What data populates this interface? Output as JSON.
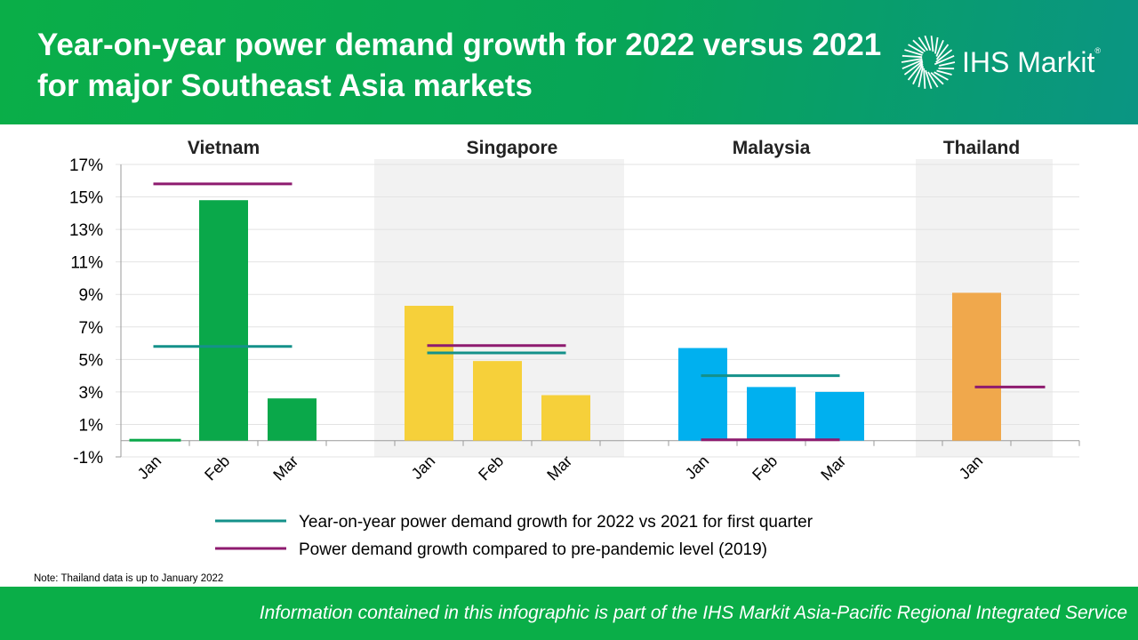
{
  "header": {
    "title": "Year-on-year power demand growth for 2022 versus 2021 for major Southeast Asia markets",
    "logo": "IHS Markit"
  },
  "chart_data": {
    "type": "bar",
    "ylim": [
      -1,
      17
    ],
    "yticks": [
      "-1%",
      "1%",
      "3%",
      "5%",
      "7%",
      "9%",
      "11%",
      "13%",
      "15%",
      "17%"
    ],
    "grid": true,
    "legend_placement": "bottom",
    "groups": [
      {
        "name": "Vietnam",
        "categories": [
          "Jan",
          "Feb",
          "Mar"
        ],
        "values": [
          0.0,
          14.8,
          2.6
        ],
        "color": "#0aa84a",
        "yoy_q1": 5.8,
        "vs_2019": 15.8,
        "shaded": false
      },
      {
        "name": "Singapore",
        "categories": [
          "Jan",
          "Feb",
          "Mar"
        ],
        "values": [
          8.3,
          4.9,
          2.8
        ],
        "color": "#f6d03a",
        "yoy_q1": 5.4,
        "vs_2019": 5.85,
        "shaded": true
      },
      {
        "name": "Malaysia",
        "categories": [
          "Jan",
          "Feb",
          "Mar"
        ],
        "values": [
          5.7,
          3.3,
          3.0
        ],
        "color": "#00b0ef",
        "yoy_q1": 4.0,
        "vs_2019": 0.05,
        "shaded": false
      },
      {
        "name": "Thailand",
        "categories": [
          "Jan"
        ],
        "values": [
          9.1
        ],
        "color": "#f0a84c",
        "yoy_q1": null,
        "vs_2019": 3.3,
        "shaded": true
      }
    ],
    "legend": [
      {
        "label": "Year-on-year power demand growth for 2022 vs 2021 for first quarter",
        "color": "#14918a"
      },
      {
        "label": "Power demand growth compared to pre-pandemic level (2019)",
        "color": "#8e1b6f"
      }
    ]
  },
  "note": "Note: Thailand data is up to January 2022",
  "footer": "Information contained in this infographic is part of the IHS Markit Asia-Pacific Regional Integrated Service"
}
